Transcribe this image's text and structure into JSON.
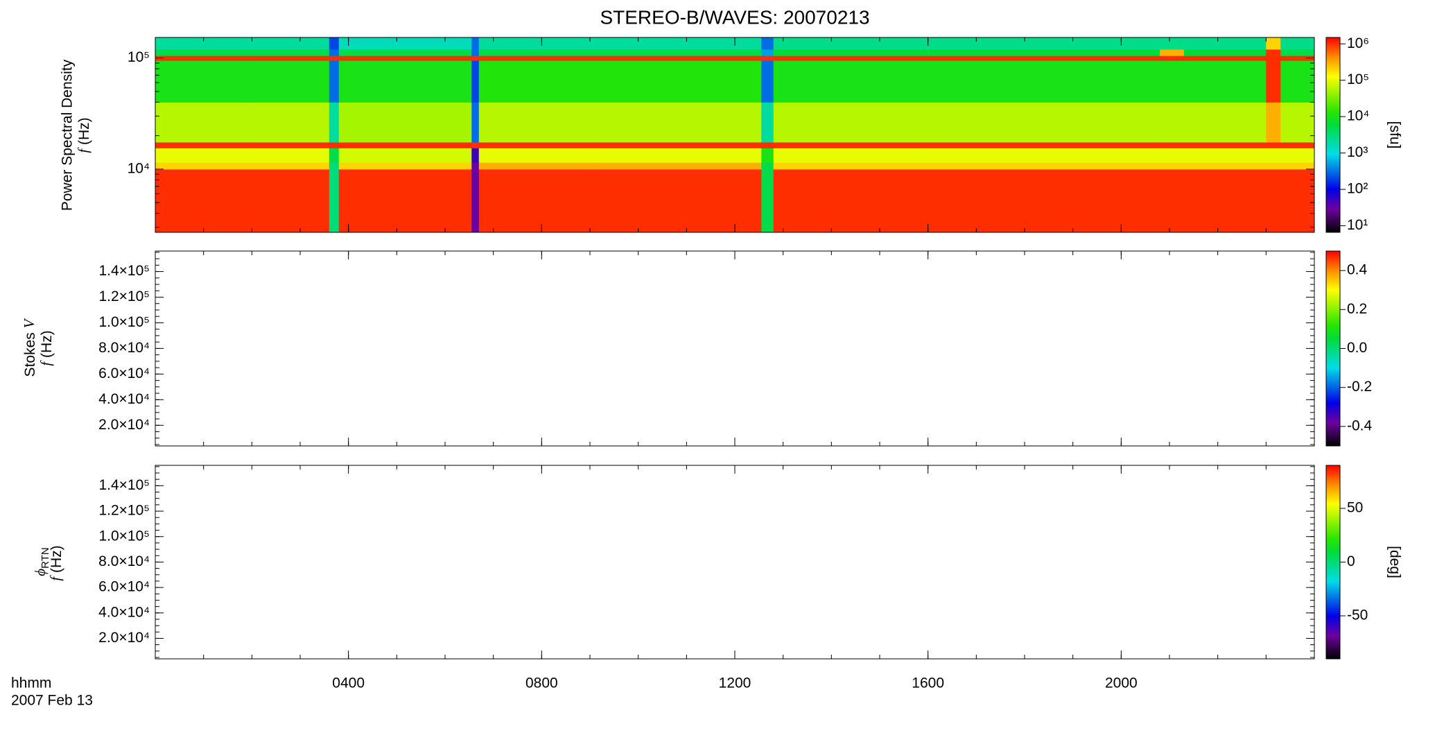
{
  "chart_data": [
    {
      "type": "heatmap",
      "title": "STEREO-B/WAVES: 20070213",
      "ylabel": "Power Spectral Density",
      "ylabel_var": "f",
      "ylabel_unit": "(Hz)",
      "log_y": true,
      "xlim": [
        0,
        24
      ],
      "ylim": [
        2700,
        153000
      ],
      "yticks": [
        {
          "value": 10000,
          "label": "10⁴"
        },
        {
          "value": 100000,
          "label": "10⁵"
        }
      ],
      "x": [
        0,
        2,
        3.6,
        3.8,
        6.55,
        6.7,
        9,
        12.55,
        12.8,
        16,
        20.8,
        21.3,
        23,
        23.3,
        24
      ],
      "y": [
        2700,
        10000,
        11500,
        15500,
        17500,
        40000,
        95000,
        105000,
        120000,
        153000
      ],
      "z": [
        [
          1000000,
          1000000,
          3000,
          1000000,
          30,
          1000000,
          1000000,
          5000,
          1000000,
          1000000,
          1000000,
          1000000,
          1000000,
          1000000
        ],
        [
          200000,
          200000,
          3000,
          200000,
          30,
          300000,
          300000,
          5000,
          200000,
          200000,
          200000,
          200000,
          200000,
          200000
        ],
        [
          100000,
          100000,
          5000,
          80000,
          50,
          100000,
          100000,
          10000,
          100000,
          100000,
          100000,
          100000,
          100000,
          100000
        ],
        [
          1000000,
          1000000,
          1000000,
          1000000,
          1000000,
          1000000,
          1000000,
          1000000,
          1000000,
          1000000,
          1000000,
          1000000,
          1000000,
          1000000
        ],
        [
          60000,
          60000,
          2000,
          50000,
          300,
          60000,
          60000,
          2000,
          60000,
          60000,
          60000,
          60000,
          300000,
          60000
        ],
        [
          10000,
          10000,
          300,
          10000,
          200,
          12000,
          12000,
          300,
          10000,
          10000,
          10000,
          10000,
          1000000,
          10000
        ],
        [
          1000000,
          1000000,
          1000000,
          1000000,
          1000000,
          1000000,
          1000000,
          1000000,
          1000000,
          1000000,
          1000000,
          1000000,
          1000000,
          1000000
        ],
        [
          5000,
          5000,
          300,
          5000,
          300,
          5000,
          5000,
          500,
          6000,
          6000,
          300000,
          6000,
          1000000,
          5000
        ],
        [
          2000,
          2000,
          200,
          1500,
          300,
          2000,
          2000,
          300,
          2500,
          2500,
          2500,
          2500,
          200000,
          2500
        ]
      ],
      "colorbar": {
        "label": "[sfu]",
        "log": true,
        "clim": [
          6.6,
          1500000
        ],
        "ticks": [
          {
            "value": 10,
            "label": "10¹"
          },
          {
            "value": 100,
            "label": "10²"
          },
          {
            "value": 1000,
            "label": "10³"
          },
          {
            "value": 10000,
            "label": "10⁴"
          },
          {
            "value": 100000,
            "label": "10⁵"
          },
          {
            "value": 1000000,
            "label": "10⁶"
          }
        ]
      }
    },
    {
      "type": "heatmap",
      "ylabel": "Stokes",
      "ylabel_var": "V",
      "ylabel2_var": "f",
      "ylabel2_unit": "(Hz)",
      "log_y": false,
      "xlim": [
        0,
        24
      ],
      "ylim": [
        3900,
        156000
      ],
      "yticks": [
        {
          "value": 20000,
          "label": "2.0×10⁴"
        },
        {
          "value": 40000,
          "label": "4.0×10⁴"
        },
        {
          "value": 60000,
          "label": "6.0×10⁴"
        },
        {
          "value": 80000,
          "label": "8.0×10⁴"
        },
        {
          "value": 100000,
          "label": "1.0×10⁵"
        },
        {
          "value": 120000,
          "label": "1.2×10⁵"
        },
        {
          "value": 140000,
          "label": "1.4×10⁵"
        }
      ],
      "colorbar": {
        "log": false,
        "clim": [
          -0.5,
          0.5
        ],
        "ticks": [
          -0.4,
          -0.2,
          {
            "value": 0,
            "label": "0.0"
          },
          0.2,
          0.4
        ]
      }
    },
    {
      "type": "heatmap",
      "ylabel": "ϕ",
      "ylabel_sub": "RTN",
      "ylabel2_var": "f",
      "ylabel2_unit": "(Hz)",
      "log_y": false,
      "xlim": [
        0,
        24
      ],
      "ylim": [
        3900,
        156000
      ],
      "yticks": [
        {
          "value": 20000,
          "label": "2.0×10⁴"
        },
        {
          "value": 40000,
          "label": "4.0×10⁴"
        },
        {
          "value": 60000,
          "label": "6.0×10⁴"
        },
        {
          "value": 80000,
          "label": "8.0×10⁴"
        },
        {
          "value": 100000,
          "label": "1.0×10⁵"
        },
        {
          "value": 120000,
          "label": "1.2×10⁵"
        },
        {
          "value": 140000,
          "label": "1.4×10⁵"
        }
      ],
      "colorbar": {
        "label": "[deg]",
        "log": false,
        "clim": [
          -90,
          90
        ],
        "ticks": [
          -50,
          0,
          50
        ]
      },
      "xlabel": "hhmm",
      "date": "2007 Feb 13",
      "xticks": [
        {
          "value": 4,
          "label": "0400"
        },
        {
          "value": 8,
          "label": "0800"
        },
        {
          "value": 12,
          "label": "1200"
        },
        {
          "value": 16,
          "label": "1600"
        },
        {
          "value": 20,
          "label": "2000"
        }
      ]
    }
  ]
}
